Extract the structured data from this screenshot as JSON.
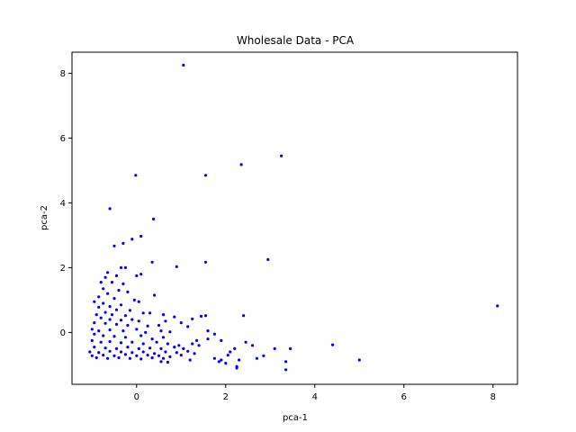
{
  "chart_data": {
    "type": "scatter",
    "title": "Wholesale Data - PCA",
    "xlabel": "pca-1",
    "ylabel": "pca-2",
    "xlim": [
      -1.45,
      8.55
    ],
    "ylim": [
      -1.6,
      8.65
    ],
    "xticks": [
      0,
      2,
      4,
      6,
      8
    ],
    "yticks": [
      0,
      2,
      4,
      6,
      8
    ],
    "grid": false,
    "marker_color": "#0000ff",
    "series": [
      {
        "points": [
          [
            1.05,
            8.25
          ],
          [
            3.25,
            5.45
          ],
          [
            2.35,
            5.18
          ],
          [
            1.55,
            4.85
          ],
          [
            -0.02,
            4.85
          ],
          [
            -0.6,
            3.82
          ],
          [
            0.38,
            3.5
          ],
          [
            0.1,
            2.97
          ],
          [
            -0.1,
            2.88
          ],
          [
            -0.3,
            2.75
          ],
          [
            -0.5,
            2.67
          ],
          [
            2.95,
            2.25
          ],
          [
            0.35,
            2.17
          ],
          [
            1.55,
            2.17
          ],
          [
            0.9,
            2.03
          ],
          [
            -0.35,
            2.0
          ],
          [
            -0.25,
            2.0
          ],
          [
            -0.65,
            1.85
          ],
          [
            0.1,
            1.8
          ],
          [
            0.0,
            1.75
          ],
          [
            -0.45,
            1.75
          ],
          [
            -0.7,
            1.7
          ],
          [
            -0.8,
            1.55
          ],
          [
            -0.55,
            1.55
          ],
          [
            -0.3,
            1.5
          ],
          [
            -0.75,
            1.35
          ],
          [
            -0.4,
            1.3
          ],
          [
            -0.2,
            1.25
          ],
          [
            0.4,
            1.15
          ],
          [
            -0.65,
            1.2
          ],
          [
            -0.85,
            1.1
          ],
          [
            -0.5,
            1.05
          ],
          [
            -0.05,
            1.0
          ],
          [
            0.05,
            0.95
          ],
          [
            -0.95,
            0.95
          ],
          [
            -0.75,
            0.9
          ],
          [
            -0.35,
            0.85
          ],
          [
            -0.6,
            0.8
          ],
          [
            -0.85,
            0.78
          ],
          [
            -0.45,
            0.7
          ],
          [
            -0.15,
            0.68
          ],
          [
            0.15,
            0.6
          ],
          [
            0.3,
            0.6
          ],
          [
            -0.7,
            0.62
          ],
          [
            -0.9,
            0.55
          ],
          [
            -0.55,
            0.55
          ],
          [
            -0.25,
            0.52
          ],
          [
            0.6,
            0.55
          ],
          [
            8.1,
            0.82
          ],
          [
            2.4,
            0.52
          ],
          [
            1.55,
            0.52
          ],
          [
            1.45,
            0.5
          ],
          [
            0.85,
            0.48
          ],
          [
            1.25,
            0.42
          ],
          [
            -0.8,
            0.45
          ],
          [
            -0.6,
            0.4
          ],
          [
            -0.35,
            0.38
          ],
          [
            -0.1,
            0.4
          ],
          [
            0.05,
            0.35
          ],
          [
            0.65,
            0.35
          ],
          [
            -0.95,
            0.3
          ],
          [
            -0.7,
            0.28
          ],
          [
            -0.45,
            0.25
          ],
          [
            -0.2,
            0.22
          ],
          [
            0.25,
            0.2
          ],
          [
            0.5,
            0.22
          ],
          [
            1.0,
            0.3
          ],
          [
            1.15,
            0.18
          ],
          [
            -1.0,
            0.1
          ],
          [
            -0.85,
            0.05
          ],
          [
            -0.6,
            0.08
          ],
          [
            -0.3,
            0.05
          ],
          [
            0.0,
            0.1
          ],
          [
            0.2,
            0.0
          ],
          [
            0.55,
            0.05
          ],
          [
            0.75,
            0.02
          ],
          [
            1.6,
            0.05
          ],
          [
            1.75,
            -0.05
          ],
          [
            -0.95,
            -0.05
          ],
          [
            -0.75,
            -0.1
          ],
          [
            -0.5,
            -0.12
          ],
          [
            -0.25,
            -0.15
          ],
          [
            0.1,
            -0.1
          ],
          [
            0.35,
            -0.2
          ],
          [
            0.6,
            -0.15
          ],
          [
            1.35,
            -0.25
          ],
          [
            1.6,
            -0.2
          ],
          [
            -1.0,
            -0.25
          ],
          [
            -0.8,
            -0.3
          ],
          [
            -0.6,
            -0.28
          ],
          [
            -0.35,
            -0.32
          ],
          [
            -0.1,
            -0.3
          ],
          [
            0.15,
            -0.35
          ],
          [
            0.45,
            -0.3
          ],
          [
            0.7,
            -0.35
          ],
          [
            0.95,
            -0.4
          ],
          [
            1.25,
            -0.35
          ],
          [
            1.4,
            -0.4
          ],
          [
            1.9,
            -0.25
          ],
          [
            2.45,
            -0.3
          ],
          [
            2.6,
            -0.4
          ],
          [
            4.4,
            -0.38
          ],
          [
            -0.95,
            -0.45
          ],
          [
            -0.7,
            -0.48
          ],
          [
            -0.45,
            -0.5
          ],
          [
            -0.2,
            -0.45
          ],
          [
            0.05,
            -0.5
          ],
          [
            0.3,
            -0.48
          ],
          [
            0.55,
            -0.5
          ],
          [
            0.85,
            -0.45
          ],
          [
            1.05,
            -0.5
          ],
          [
            2.2,
            -0.5
          ],
          [
            3.1,
            -0.5
          ],
          [
            3.45,
            -0.5
          ],
          [
            -1.05,
            -0.6
          ],
          [
            -0.85,
            -0.62
          ],
          [
            -0.6,
            -0.58
          ],
          [
            -0.35,
            -0.6
          ],
          [
            -0.1,
            -0.62
          ],
          [
            0.15,
            -0.6
          ],
          [
            0.4,
            -0.65
          ],
          [
            0.65,
            -0.6
          ],
          [
            0.9,
            -0.62
          ],
          [
            1.15,
            -0.58
          ],
          [
            1.3,
            -0.65
          ],
          [
            2.1,
            -0.6
          ],
          [
            -1.0,
            -0.72
          ],
          [
            -0.75,
            -0.7
          ],
          [
            -0.5,
            -0.72
          ],
          [
            -0.25,
            -0.68
          ],
          [
            0.0,
            -0.72
          ],
          [
            0.25,
            -0.7
          ],
          [
            0.5,
            -0.72
          ],
          [
            0.75,
            -0.75
          ],
          [
            1.0,
            -0.7
          ],
          [
            2.05,
            -0.7
          ],
          [
            2.85,
            -0.72
          ],
          [
            -0.9,
            -0.78
          ],
          [
            -0.65,
            -0.8
          ],
          [
            -0.4,
            -0.78
          ],
          [
            -0.15,
            -0.8
          ],
          [
            0.1,
            -0.82
          ],
          [
            0.35,
            -0.78
          ],
          [
            0.6,
            -0.8
          ],
          [
            1.2,
            -0.85
          ],
          [
            1.75,
            -0.8
          ],
          [
            1.9,
            -0.85
          ],
          [
            2.7,
            -0.8
          ],
          [
            0.55,
            -0.9
          ],
          [
            0.7,
            -0.92
          ],
          [
            1.85,
            -0.9
          ],
          [
            2.0,
            -0.95
          ],
          [
            2.3,
            -0.85
          ],
          [
            3.35,
            -0.9
          ],
          [
            5.0,
            -0.85
          ],
          [
            2.25,
            -1.05
          ],
          [
            3.35,
            -1.15
          ],
          [
            2.25,
            -1.1
          ]
        ]
      }
    ]
  }
}
